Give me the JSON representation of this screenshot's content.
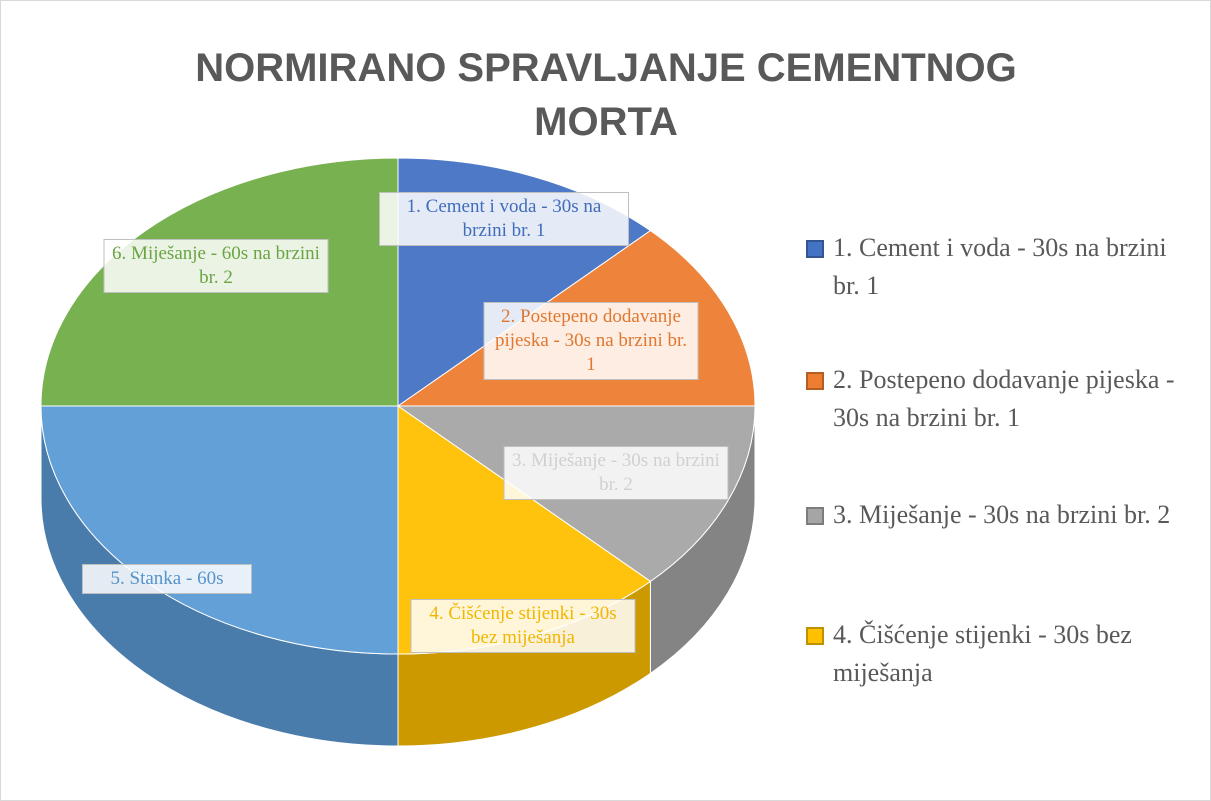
{
  "chart_data": {
    "type": "pie",
    "title": "NORMIRANO SPRAVLJANJE CEMENTNOG MORTA",
    "categories": [
      "1. Cement i voda - 30s na brzini br. 1",
      "2. Postepeno dodavanje pijeska - 30s na brzini br. 1",
      "3. Miješanje - 30s na brzini br. 2",
      "4. Čišćenje stijenki - 30s bez miješanja",
      "5. Stanka - 60s",
      "6. Miješanje - 60s na brzini br. 2"
    ],
    "values": [
      30,
      30,
      30,
      30,
      60,
      60
    ],
    "colors": [
      "#4472c4",
      "#ed7d31",
      "#a5a5a5",
      "#ffc000",
      "#5b9bd5",
      "#70ad47"
    ],
    "legend_entries": [
      0,
      1,
      2,
      3
    ]
  }
}
